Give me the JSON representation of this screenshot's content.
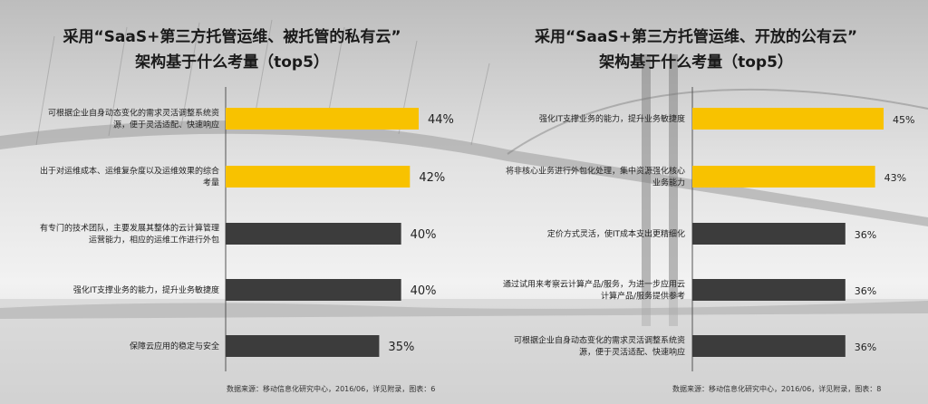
{
  "charts": [
    {
      "title_line1": "采用“SaaS+第三方托管运维、被托管的私有云”",
      "title_line2": "架构基于什么考量（top5）",
      "source": "数据来源：移动信息化研究中心，2016/06，详见附录，图表：6"
    },
    {
      "title_line1": "采用“SaaS+第三方托管运维、开放的公有云”",
      "title_line2": "架构基于什么考量（top5）",
      "source": "数据来源：移动信息化研究中心，2016/06，详见附录，图表：8"
    }
  ],
  "colors": {
    "highlight": "#f8c200",
    "dark": "#3c3c3c"
  },
  "chart_data": [
    {
      "type": "bar",
      "orientation": "horizontal",
      "categories": [
        [
          "可根据企业自身动态变化的需求灵活调整系统资",
          "源，便于灵活适配、快速响应"
        ],
        [
          "出于对运维成本、运维复杂度以及运维效果的综合",
          "考量"
        ],
        [
          "有专门的技术团队，主要发展其整体的云计算管理",
          "运营能力，相应的运维工作进行外包"
        ],
        [
          "强化IT支撑业务的能力，提升业务敏捷度"
        ],
        [
          "保障云应用的稳定与安全"
        ]
      ],
      "values": [
        44,
        42,
        40,
        40,
        35
      ],
      "value_labels": [
        "44%",
        "42%",
        "40%",
        "40%",
        "35%"
      ],
      "highlight_top": 2,
      "xlim": [
        0,
        60
      ],
      "grid": false
    },
    {
      "type": "bar",
      "orientation": "horizontal",
      "categories": [
        [
          "强化IT支撑业务的能力，提升业务敏捷度"
        ],
        [
          "将非核心业务进行外包化处理，集中资源强化核心",
          "业务能力"
        ],
        [
          "定价方式灵活，使IT成本支出更精细化"
        ],
        [
          "通过试用来考察云计算产品/服务，为进一步应用云",
          "计算产品/服务提供参考"
        ],
        [
          "可根据企业自身动态变化的需求灵活调整系统资",
          "源，便于灵活适配、快速响应"
        ]
      ],
      "values": [
        45,
        43,
        36,
        36,
        36
      ],
      "value_labels": [
        "45%",
        "43%",
        "36%",
        "36%",
        "36%"
      ],
      "highlight_top": 2,
      "xlim": [
        0,
        45
      ],
      "grid": false
    }
  ]
}
